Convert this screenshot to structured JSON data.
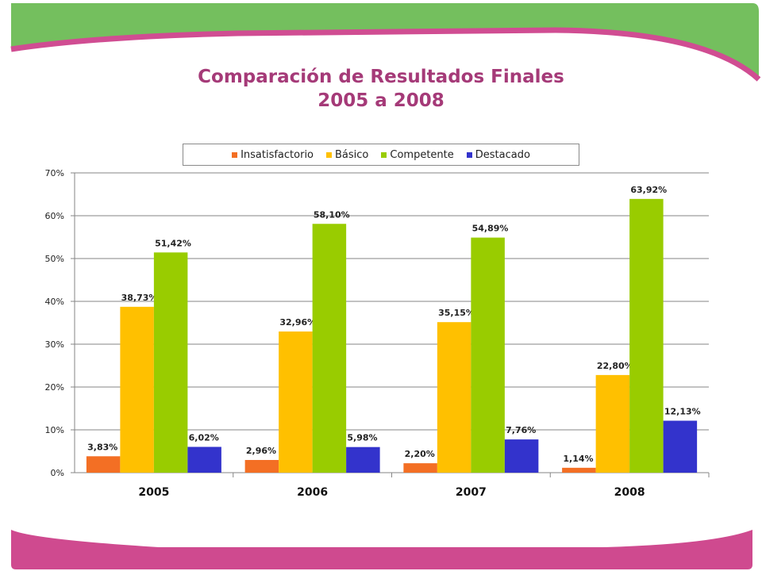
{
  "slide": {
    "title_line1": "Comparación de Resultados Finales",
    "title_line2": "2005 a 2008"
  },
  "colors": {
    "title": "#a53a78",
    "banner_green": "#74bf5e",
    "banner_pink": "#d04d92"
  },
  "chart_data": {
    "type": "bar",
    "categories": [
      "2005",
      "2006",
      "2007",
      "2008"
    ],
    "series": [
      {
        "name": "Insatisfactorio",
        "color": "#f36f24",
        "values": [
          3.83,
          2.96,
          2.2,
          1.14
        ],
        "labels": [
          "3,83%",
          "2,96%",
          "2,20%",
          "1,14%"
        ]
      },
      {
        "name": "Básico",
        "color": "#ffc000",
        "values": [
          38.73,
          32.96,
          35.15,
          22.8
        ],
        "labels": [
          "38,73%",
          "32,96%",
          "35,15%",
          "22,80%"
        ]
      },
      {
        "name": "Competente",
        "color": "#99cc00",
        "values": [
          51.42,
          58.1,
          54.89,
          63.92
        ],
        "labels": [
          "51,42%",
          "58,10%",
          "54,89%",
          "63,92%"
        ]
      },
      {
        "name": "Destacado",
        "color": "#3333cc",
        "values": [
          6.02,
          5.98,
          7.76,
          12.13
        ],
        "labels": [
          "6,02%",
          "5,98%",
          "7,76%",
          "12,13%"
        ]
      }
    ],
    "ylim": [
      0,
      70
    ],
    "yticks": [
      "0%",
      "10%",
      "20%",
      "30%",
      "40%",
      "50%",
      "60%",
      "70%"
    ],
    "grid": true,
    "legend_position": "top"
  }
}
